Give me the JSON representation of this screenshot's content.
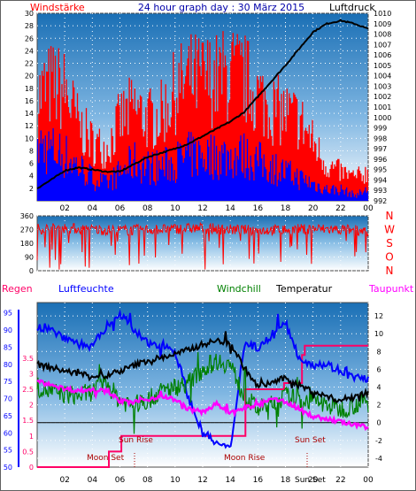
{
  "header": {
    "left": "Windstärke",
    "title": "24 hour graph day : 30 März 2015",
    "right": "Luftdruck"
  },
  "legend": {
    "regen": "Regen",
    "luftfeuchte": "Luftfeuchte",
    "windchill": "Windchill",
    "temperatur": "Temperatur",
    "taupunkt": "Taupunkt"
  },
  "colors": {
    "wind_avg": "#0000ff",
    "wind_gust": "#ff0000",
    "pressure": "#000000",
    "direction": "#ff0000",
    "temperature": "#000000",
    "windchill": "#008000",
    "dewpoint": "#ff00ff",
    "humidity": "#0000ff",
    "rain": "#ff0066",
    "sky_top": "#1a6fb5",
    "sky_bottom": "#ffffff"
  },
  "chart_data": [
    {
      "type": "line",
      "title": "24 hour graph day : 30 März 2015",
      "ylabel": "Windstärke",
      "y2label": "Luftdruck",
      "x_tick_labels": [
        "02",
        "04",
        "06",
        "08",
        "10",
        "12",
        "14",
        "16",
        "18",
        "20",
        "22",
        "00"
      ],
      "ylim": [
        0,
        30
      ],
      "yticks": [
        2,
        4,
        6,
        8,
        10,
        12,
        14,
        16,
        18,
        20,
        22,
        24,
        26,
        28,
        30
      ],
      "y2lim": [
        992,
        1010
      ],
      "y2ticks": [
        992,
        993,
        994,
        995,
        996,
        997,
        998,
        999,
        1000,
        1001,
        1002,
        1003,
        1004,
        1005,
        1006,
        1007,
        1008,
        1009,
        1010
      ],
      "series": [
        {
          "name": "Luftdruck",
          "axis": "right",
          "x": [
            0,
            1,
            2,
            3,
            4,
            5,
            6,
            7,
            8,
            9,
            10,
            11,
            12,
            13,
            14,
            15,
            16,
            17,
            18,
            19,
            20,
            21,
            22,
            23,
            24
          ],
          "values": [
            993.2,
            994.0,
            994.9,
            995.2,
            995.0,
            994.8,
            994.8,
            995.5,
            996.2,
            996.6,
            997.0,
            997.5,
            998.2,
            998.9,
            999.6,
            1000.5,
            1002.0,
            1003.5,
            1005.0,
            1006.6,
            1008.2,
            1009.0,
            1009.3,
            1009.0,
            1008.5
          ]
        },
        {
          "name": "Windstärke",
          "x": [
            0,
            1,
            2,
            3,
            4,
            5,
            6,
            7,
            8,
            9,
            10,
            11,
            12,
            13,
            14,
            15,
            16,
            17,
            18,
            19,
            20,
            21,
            22,
            23,
            24
          ],
          "values": [
            10,
            9,
            8,
            6,
            4,
            3,
            5,
            7,
            6,
            6,
            7,
            8,
            8,
            8,
            8,
            8,
            7,
            6,
            5,
            4,
            3,
            2,
            2,
            1,
            2
          ]
        },
        {
          "name": "Böen",
          "x": [
            0,
            1,
            2,
            3,
            4,
            5,
            6,
            7,
            8,
            9,
            10,
            11,
            12,
            13,
            14,
            15,
            16,
            17,
            18,
            19,
            20,
            21,
            22,
            23,
            24
          ],
          "values": [
            18,
            20,
            19,
            13,
            10,
            9,
            14,
            16,
            14,
            15,
            19,
            21,
            21,
            21,
            22,
            21,
            18,
            16,
            15,
            14,
            10,
            6,
            5,
            4,
            5
          ]
        }
      ]
    },
    {
      "type": "line",
      "ylabel": "Windrichtung",
      "ylim": [
        0,
        360
      ],
      "yticks": [
        0,
        90,
        180,
        270,
        360
      ],
      "compass_labels": [
        "N",
        "W",
        "S",
        "O",
        "N"
      ],
      "series": [
        {
          "name": "Windrichtung",
          "x": [
            0,
            2,
            4,
            6,
            8,
            10,
            12,
            14,
            16,
            18,
            20,
            22,
            24
          ],
          "values": [
            275,
            280,
            270,
            265,
            270,
            275,
            280,
            270,
            265,
            270,
            275,
            270,
            265
          ]
        }
      ]
    },
    {
      "type": "line",
      "x_tick_labels": [
        "02",
        "04",
        "06",
        "08",
        "10",
        "12",
        "14",
        "16",
        "18",
        "20",
        "22",
        "00"
      ],
      "humidity_ticks": [
        50,
        55,
        60,
        65,
        70,
        75,
        80,
        85,
        90,
        95
      ],
      "rain_ticks": [
        0,
        0.5,
        1,
        1.5,
        2,
        2.5,
        3,
        3.5
      ],
      "temp_ticks": [
        -4,
        -2,
        0,
        2,
        4,
        6,
        8,
        10,
        12
      ],
      "ylim_temp": [
        -5,
        13.5
      ],
      "ylim_humidity": [
        50,
        98
      ],
      "annotations": [
        "Moon Set",
        "Sun Rise",
        "Moon Rise",
        "Sun Set",
        "Sun Set"
      ],
      "series": [
        {
          "name": "Temperatur",
          "x": [
            0,
            1,
            2,
            3,
            4,
            5,
            6,
            7,
            8,
            9,
            10,
            11,
            12,
            13,
            14,
            15,
            16,
            17,
            18,
            19,
            20,
            21,
            22,
            23,
            24
          ],
          "values": [
            6.5,
            6.2,
            5.8,
            5.5,
            5.3,
            5.2,
            5.8,
            6.4,
            7.0,
            7.3,
            7.7,
            8.2,
            8.8,
            9.2,
            9.0,
            6.2,
            4.0,
            4.5,
            5.0,
            4.2,
            3.5,
            2.9,
            2.5,
            3.0,
            3.4
          ]
        },
        {
          "name": "Windchill",
          "x": [
            0,
            1,
            2,
            3,
            4,
            5,
            6,
            7,
            8,
            9,
            10,
            11,
            12,
            13,
            14,
            15,
            16,
            17,
            18,
            19,
            20,
            21,
            22,
            23,
            24
          ],
          "values": [
            4.0,
            3.5,
            3.2,
            3.0,
            3.5,
            4.5,
            2.5,
            2.0,
            2.5,
            3.5,
            4.0,
            4.5,
            6.0,
            7.0,
            6.5,
            3.0,
            1.5,
            2.0,
            3.0,
            2.5,
            2.5,
            2.0,
            1.5,
            2.0,
            2.5
          ]
        },
        {
          "name": "Taupunkt",
          "x": [
            0,
            1,
            2,
            3,
            4,
            5,
            6,
            7,
            8,
            9,
            10,
            11,
            12,
            13,
            14,
            15,
            16,
            17,
            18,
            19,
            20,
            21,
            22,
            23,
            24
          ],
          "values": [
            4.6,
            4.3,
            3.8,
            3.6,
            3.7,
            3.8,
            2.4,
            2.3,
            2.6,
            3.0,
            2.6,
            1.5,
            1.2,
            2.1,
            1.0,
            1.6,
            2.0,
            2.6,
            2.4,
            1.5,
            0.7,
            0.4,
            0.1,
            -0.3,
            -0.5
          ]
        },
        {
          "name": "Luftfeuchte",
          "x": [
            0,
            1,
            2,
            3,
            4,
            5,
            6,
            7,
            8,
            9,
            10,
            11,
            12,
            13,
            14,
            15,
            16,
            17,
            18,
            19,
            20,
            21,
            22,
            23,
            24
          ],
          "values": [
            91,
            90,
            88,
            86,
            85,
            91,
            95,
            90,
            86,
            86,
            84,
            70,
            60,
            57,
            55,
            86,
            85,
            88,
            92,
            82,
            80,
            80,
            78,
            76,
            76
          ]
        },
        {
          "name": "Regen",
          "x": [
            0,
            5.2,
            5.2,
            6.1,
            6.1,
            15.1,
            15.1,
            17.9,
            17.9,
            19.2,
            19.2,
            19.4,
            19.4,
            24
          ],
          "values": [
            0,
            0,
            0.5,
            0.5,
            1.0,
            1.0,
            2.5,
            2.5,
            2.7,
            2.7,
            3.6,
            3.6,
            3.9,
            3.9
          ]
        }
      ]
    }
  ]
}
